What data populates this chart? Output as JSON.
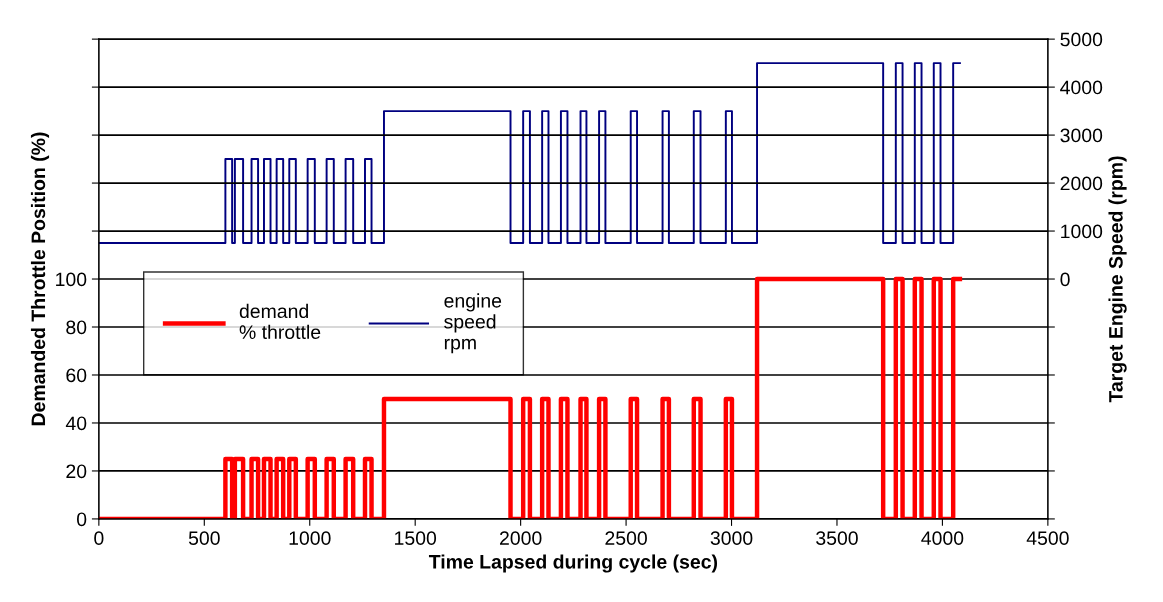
{
  "chart_data": {
    "type": "step",
    "xlabel": "Time Lapsed during cycle (sec)",
    "ylabel": "Demanded Throttle Position (%)",
    "y2label": "Target Engine Speed (rpm)",
    "xlim": [
      0,
      4500
    ],
    "xticks": [
      0,
      500,
      1000,
      1500,
      2000,
      2500,
      3000,
      3500,
      4000,
      4500
    ],
    "ylim": [
      0,
      200
    ],
    "yticks": [
      0,
      20,
      40,
      60,
      80,
      100,
      {
        "value": 120,
        "label": null
      },
      {
        "value": 140,
        "label": null
      },
      {
        "value": 160,
        "label": null
      },
      {
        "value": 180,
        "label": null
      },
      {
        "value": 200,
        "label": null
      }
    ],
    "y2lim": [
      -5000,
      5000
    ],
    "y2ticks": [
      {
        "value": -5000,
        "label": null
      },
      {
        "value": -4000,
        "label": null
      },
      {
        "value": -3000,
        "label": null
      },
      {
        "value": -2000,
        "label": null
      },
      {
        "value": -1000,
        "label": null
      },
      0,
      1000,
      2000,
      3000,
      4000,
      5000
    ],
    "grid": "y",
    "legend": "left",
    "marker": "none",
    "line_style": "solid",
    "series": [
      {
        "name": "demand\n% throttle",
        "color": "#ff0000",
        "x": [
          0,
          600,
          632,
          645,
          684,
          724,
          755,
          783,
          814,
          843,
          874,
          903,
          934,
          990,
          1024,
          1080,
          1114,
          1170,
          1206,
          1262,
          1293,
          1352,
          1952,
          2012,
          2044,
          2102,
          2132,
          2191,
          2222,
          2284,
          2312,
          2372,
          2402,
          2522,
          2552,
          2673,
          2703,
          2821,
          2853,
          2973,
          3002,
          3121,
          3719,
          3779,
          3811,
          3869,
          3901,
          3959,
          3991,
          4051,
          4083
        ],
        "values": [
          0,
          25,
          0,
          25,
          0,
          25,
          0,
          25,
          0,
          25,
          0,
          25,
          0,
          25,
          0,
          25,
          0,
          25,
          0,
          25,
          0,
          50,
          0,
          50,
          0,
          50,
          0,
          50,
          0,
          50,
          0,
          50,
          0,
          50,
          0,
          50,
          0,
          50,
          0,
          50,
          0,
          100,
          0,
          100,
          0,
          100,
          0,
          100,
          0,
          100,
          100
        ]
      },
      {
        "name": "engine\nspeed\nrpm",
        "color": "#000080",
        "axis": "y2",
        "x": [
          0,
          600,
          632,
          645,
          684,
          724,
          755,
          783,
          814,
          843,
          874,
          903,
          934,
          990,
          1024,
          1080,
          1114,
          1170,
          1206,
          1262,
          1293,
          1352,
          1952,
          2012,
          2044,
          2102,
          2132,
          2191,
          2222,
          2284,
          2312,
          2372,
          2402,
          2522,
          2552,
          2673,
          2703,
          2821,
          2853,
          2973,
          3002,
          3121,
          3719,
          3779,
          3811,
          3869,
          3901,
          3959,
          3991,
          4051,
          4083
        ],
        "values": [
          750,
          2500,
          750,
          2500,
          750,
          2500,
          750,
          2500,
          750,
          2500,
          750,
          2500,
          750,
          2500,
          750,
          2500,
          750,
          2500,
          750,
          2500,
          750,
          3500,
          750,
          3500,
          750,
          3500,
          750,
          3500,
          750,
          3500,
          750,
          3500,
          750,
          3500,
          750,
          3500,
          750,
          3500,
          750,
          3500,
          750,
          4500,
          750,
          4500,
          750,
          4500,
          750,
          4500,
          750,
          4500,
          4500
        ]
      }
    ]
  }
}
